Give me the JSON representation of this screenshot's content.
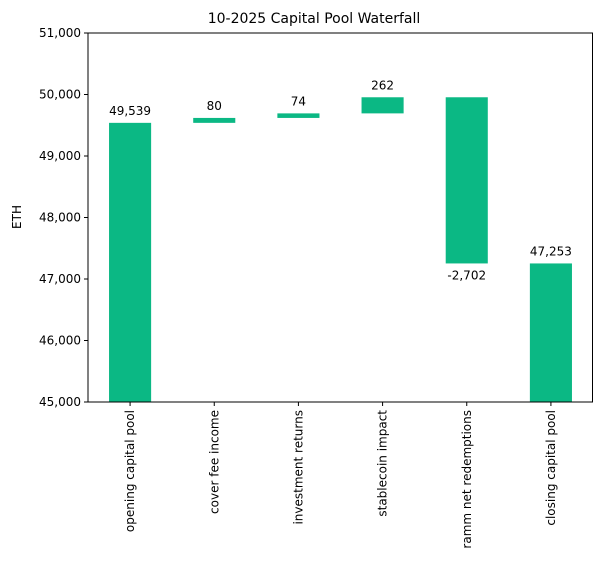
{
  "chart_data": {
    "type": "waterfall",
    "title": "10-2025 Capital Pool Waterfall",
    "ylabel": "ETH",
    "xlabel": "",
    "ylim": [
      45000,
      51000
    ],
    "yticks": [
      45000,
      46000,
      47000,
      48000,
      49000,
      50000,
      51000
    ],
    "ytick_labels": [
      "45,000",
      "46,000",
      "47,000",
      "48,000",
      "49,000",
      "50,000",
      "51,000"
    ],
    "grid": false,
    "bar_color": "#0bb884",
    "categories": [
      "opening capital pool",
      "cover fee income",
      "investment returns",
      "stablecoin impact",
      "ramm net redemptions",
      "closing capital pool"
    ],
    "values": [
      49539,
      80,
      74,
      262,
      -2702,
      47253
    ],
    "kinds": [
      "total",
      "delta",
      "delta",
      "delta",
      "delta",
      "total"
    ],
    "data_labels": [
      "49,539",
      "80",
      "74",
      "262",
      "-2,702",
      "47,253"
    ]
  }
}
